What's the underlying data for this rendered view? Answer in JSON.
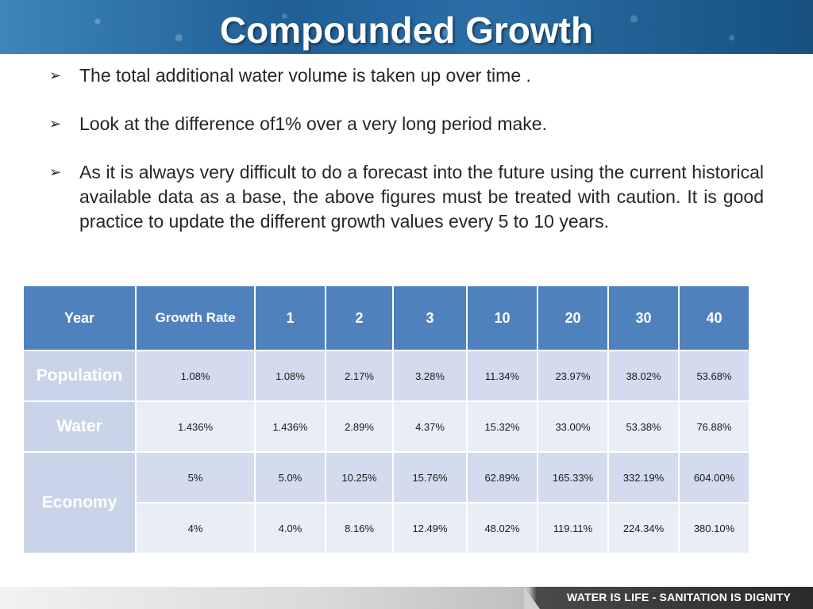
{
  "title": "Compounded Growth",
  "bullets": [
    "The total additional water volume is taken up over time .",
    "Look at the difference of1% over a very long period make.",
    "As it is always very difficult to do a forecast into the future using the current historical available data as a base, the above figures must be treated with caution.  It is good practice to update the different growth values every 5 to 10 years."
  ],
  "bullet_icon": "arrow-bullet-icon",
  "table": {
    "headers": [
      "Year",
      "Growth Rate",
      "1",
      "2",
      "3",
      "10",
      "20",
      "30",
      "40"
    ],
    "rows": [
      {
        "label": "Population",
        "values": [
          "1.08%",
          "1.08%",
          "2.17%",
          "3.28%",
          "11.34%",
          "23.97%",
          "38.02%",
          "53.68%"
        ]
      },
      {
        "label": "Water",
        "values": [
          "1.436%",
          "1.436%",
          "2.89%",
          "4.37%",
          "15.32%",
          "33.00%",
          "53.38%",
          "76.88%"
        ]
      },
      {
        "label": "Economy",
        "values": [
          "5%",
          "5.0%",
          "10.25%",
          "15.76%",
          "62.89%",
          "165.33%",
          "332.19%",
          "604.00%"
        ]
      },
      {
        "label": "",
        "values": [
          "4%",
          "4.0%",
          "8.16%",
          "12.49%",
          "48.02%",
          "119.11%",
          "224.34%",
          "380.10%"
        ]
      }
    ]
  },
  "footer": {
    "slogan": "WATER IS LIFE - SANITATION IS DIGNITY"
  },
  "colors": {
    "header_blue": "#1f5f96",
    "table_header": "#4f81bd",
    "row_dark": "#d3dcee",
    "row_light": "#e9edf6"
  }
}
